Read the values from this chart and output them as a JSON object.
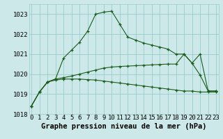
{
  "line1": [
    1018.4,
    1019.1,
    1019.6,
    1019.7,
    1019.75,
    1019.75,
    1019.75,
    1019.72,
    1019.7,
    1019.65,
    1019.6,
    1019.55,
    1019.5,
    1019.45,
    1019.4,
    1019.35,
    1019.3,
    1019.25,
    1019.2,
    1019.15,
    1019.15,
    1019.1,
    1019.1,
    1019.1
  ],
  "line2": [
    1018.4,
    1019.1,
    1019.6,
    1019.75,
    1019.82,
    1019.9,
    1020.0,
    1020.1,
    1020.2,
    1020.3,
    1020.35,
    1020.38,
    1020.4,
    1020.42,
    1020.44,
    1020.46,
    1020.48,
    1020.5,
    1020.5,
    1021.0,
    1020.55,
    1019.95,
    1019.15,
    1019.15
  ],
  "line3": [
    1018.4,
    1019.1,
    1019.6,
    1019.75,
    1020.8,
    1021.2,
    1021.6,
    1022.15,
    1023.0,
    1023.1,
    1023.15,
    1022.5,
    1021.85,
    1021.7,
    1021.55,
    1021.45,
    1021.35,
    1021.25,
    1021.0,
    1021.0,
    1020.55,
    1021.0,
    1019.15,
    1019.15
  ],
  "x": [
    0,
    1,
    2,
    3,
    4,
    5,
    6,
    7,
    8,
    9,
    10,
    11,
    12,
    13,
    14,
    15,
    16,
    17,
    18,
    19,
    20,
    21,
    22,
    23
  ],
  "ylim": [
    1018.0,
    1023.5
  ],
  "yticks": [
    1018,
    1019,
    1020,
    1021,
    1022,
    1023
  ],
  "xticks": [
    0,
    1,
    2,
    3,
    4,
    5,
    6,
    7,
    8,
    9,
    10,
    11,
    12,
    13,
    14,
    15,
    16,
    17,
    18,
    19,
    20,
    21,
    22,
    23
  ],
  "xlabel": "Graphe pression niveau de la mer (hPa)",
  "line_color": "#1a5c1a",
  "bg_color": "#cce8e8",
  "grid_color": "#99cccc",
  "marker": "+",
  "label_fontsize": 7.5,
  "tick_fontsize": 6.5
}
